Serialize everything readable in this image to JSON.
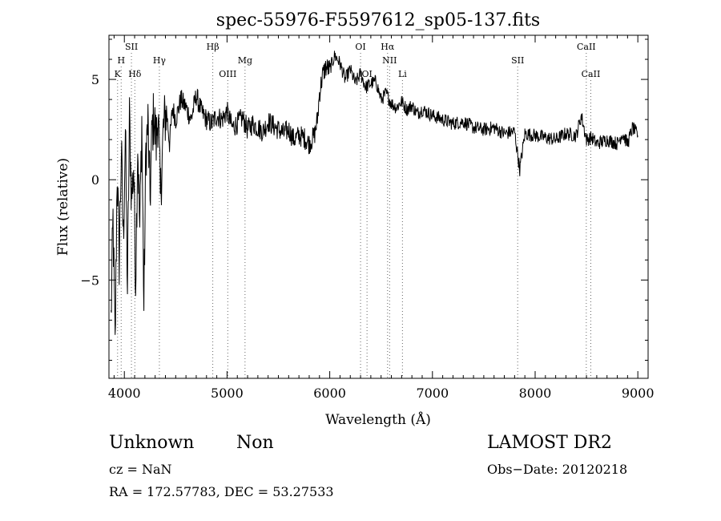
{
  "chart_data": {
    "type": "line",
    "title": "spec-55976-F5597612_sp05-137.fits",
    "xlabel": "Wavelength (Å)",
    "ylabel": "Flux (relative)",
    "xlim": [
      3850,
      9100
    ],
    "ylim": [
      -9.9,
      7.2
    ],
    "x_ticks": [
      4000,
      5000,
      6000,
      7000,
      8000,
      9000
    ],
    "x_tick_labels": [
      "4000",
      "5000",
      "6000",
      "7000",
      "8000",
      "9000"
    ],
    "y_ticks": [
      -5,
      0,
      5
    ],
    "y_tick_labels": [
      "−5",
      "0",
      "5"
    ],
    "grid": false,
    "series": [
      {
        "x": [
          3870,
          3890,
          3910,
          3930,
          3950,
          3970,
          3990,
          4010,
          4030,
          4050,
          4070,
          4090,
          4110,
          4130,
          4150,
          4170,
          4190,
          4210,
          4230,
          4250,
          4270,
          4290,
          4310,
          4330,
          4350,
          4380,
          4410,
          4440,
          4470,
          4500,
          4550,
          4600,
          4650,
          4700,
          4750,
          4800,
          4850,
          4900,
          4950,
          5000,
          5050,
          5100,
          5150,
          5200,
          5250,
          5300,
          5350,
          5400,
          5450,
          5500,
          5550,
          5600,
          5650,
          5700,
          5750,
          5800,
          5850,
          5880,
          5900,
          5930,
          5960,
          6000,
          6050,
          6100,
          6150,
          6200,
          6250,
          6300,
          6350,
          6400,
          6450,
          6500,
          6550,
          6600,
          6650,
          6700,
          6750,
          6800,
          6850,
          6900,
          7000,
          7100,
          7200,
          7300,
          7400,
          7500,
          7600,
          7700,
          7800,
          7850,
          7900,
          8000,
          8100,
          8200,
          8300,
          8400,
          8450,
          8500,
          8550,
          8600,
          8700,
          8800,
          8850,
          8900,
          8950,
          9000
        ],
        "y": [
          -7.0,
          -2.0,
          -8.5,
          0.5,
          -4.0,
          1.5,
          -3.0,
          2.5,
          -5.5,
          3.0,
          -1.0,
          0.8,
          -5.0,
          2.0,
          -2.5,
          3.0,
          -6.5,
          1.5,
          2.8,
          -1.0,
          2.5,
          3.2,
          1.8,
          3.5,
          -1.0,
          2.5,
          3.5,
          1.8,
          3.6,
          3.0,
          4.0,
          3.6,
          3.0,
          4.2,
          3.4,
          3.0,
          2.8,
          3.2,
          3.0,
          3.4,
          2.6,
          2.8,
          3.1,
          2.5,
          2.8,
          2.6,
          2.4,
          2.9,
          2.7,
          2.5,
          2.3,
          2.5,
          2.0,
          2.2,
          2.1,
          1.8,
          2.2,
          3.0,
          4.3,
          5.2,
          5.6,
          5.5,
          6.2,
          5.8,
          5.0,
          5.5,
          4.8,
          5.3,
          4.6,
          4.8,
          4.9,
          4.0,
          4.3,
          3.8,
          3.6,
          3.9,
          3.5,
          3.7,
          3.3,
          3.5,
          3.2,
          3.0,
          2.8,
          2.9,
          2.6,
          2.5,
          2.6,
          2.3,
          2.4,
          0.5,
          2.3,
          2.2,
          2.1,
          2.0,
          2.3,
          2.2,
          3.2,
          2.0,
          2.1,
          1.8,
          2.0,
          1.8,
          2.3,
          1.8,
          2.6,
          2.2
        ]
      }
    ],
    "line_markers": [
      {
        "label": "K",
        "x": 3934,
        "row": 4
      },
      {
        "label": "H",
        "x": 3969,
        "row": 2
      },
      {
        "label": "SII",
        "x": 4069,
        "row": 1
      },
      {
        "label": "Hδ",
        "x": 4102,
        "row": 4
      },
      {
        "label": "Hγ",
        "x": 4341,
        "row": 2
      },
      {
        "label": "Hβ",
        "x": 4861,
        "row": 1
      },
      {
        "label": "OIII",
        "x": 5007,
        "row": 4
      },
      {
        "label": "Mg",
        "x": 5175,
        "row": 2
      },
      {
        "label": "OI",
        "x": 6300,
        "row": 1
      },
      {
        "label": "OI",
        "x": 6363,
        "row": 4
      },
      {
        "label": "Hα",
        "x": 6563,
        "row": 1
      },
      {
        "label": "NII",
        "x": 6583,
        "row": 2
      },
      {
        "label": "Li",
        "x": 6708,
        "row": 4
      },
      {
        "label": "SII",
        "x": 7830,
        "row": 2
      },
      {
        "label": "CaII",
        "x": 8498,
        "row": 1
      },
      {
        "label": "CaII",
        "x": 8542,
        "row": 4
      }
    ]
  },
  "info": {
    "class": "Unknown",
    "subclass": "Non",
    "cz": "cz = NaN",
    "coords": "RA = 172.57783, DEC =  53.27533",
    "survey": "LAMOST DR2",
    "obs_date": "Obs−Date: 20120218"
  }
}
